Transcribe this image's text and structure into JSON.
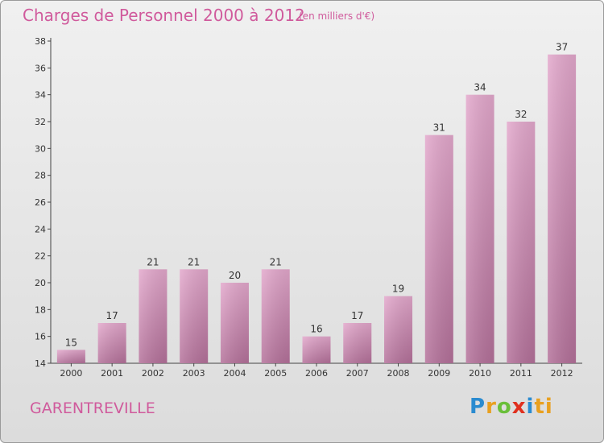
{
  "header": {
    "title": "Charges de Personnel 2000 à 2012",
    "subtitle": "(en milliers d'€)"
  },
  "footer": {
    "commune": "GARENTREVILLE",
    "logo_letters": [
      "P",
      "r",
      "o",
      "x",
      "i",
      "ti"
    ]
  },
  "colors": {
    "bar_top": "#e3a8cc",
    "bar_bottom": "#b4719a",
    "accent_text": "#d05a9c"
  },
  "chart_data": {
    "type": "bar",
    "categories": [
      "2000",
      "2001",
      "2002",
      "2003",
      "2004",
      "2005",
      "2006",
      "2007",
      "2008",
      "2009",
      "2010",
      "2011",
      "2012"
    ],
    "values": [
      15,
      17,
      21,
      21,
      20,
      21,
      16,
      17,
      19,
      31,
      34,
      32,
      37
    ],
    "data_labels": [
      "15",
      "17",
      "21",
      "21",
      "20",
      "21",
      "16",
      "17",
      "19",
      "31",
      "34",
      "32",
      "37"
    ],
    "yticks": [
      "14",
      "16",
      "18",
      "20",
      "22",
      "24",
      "26",
      "28",
      "30",
      "32",
      "34",
      "36",
      "38"
    ],
    "ylim": [
      14,
      38
    ],
    "grid": false,
    "title": "Charges de Personnel 2000 à 2012"
  }
}
